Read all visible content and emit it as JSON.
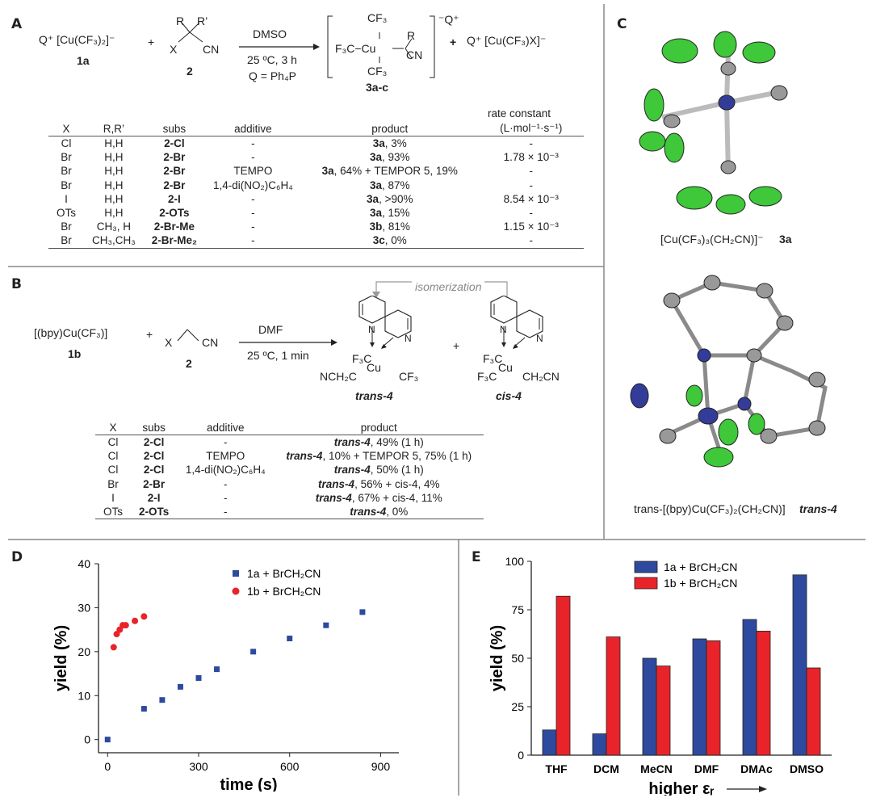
{
  "panels": {
    "a": "A",
    "b": "B",
    "c": "C",
    "d": "D",
    "e": "E"
  },
  "scheme_a": {
    "reagent1": "Q⁺ [Cu(CF₃)₂]⁻",
    "reagent1_id": "1a",
    "plus": "+",
    "r_label": "R",
    "rprime_label": "R’",
    "x_label": "X",
    "cn_label": "CN",
    "reagent2_id": "2",
    "arrow_top": "DMSO",
    "arrow_bottom1": "25 ºC, 3 h",
    "arrow_bottom2": "Q = Ph₄P",
    "charge": "⁻Q⁺",
    "product_id": "3a-c",
    "byproduct": "Q⁺ [Cu(CF₃)X]⁻",
    "cf3": "CF₃",
    "f3c": "F₃C",
    "cu": "Cu",
    "bond_cf3_left": "F₃C−Cu",
    "bond_r": "R"
  },
  "table_a": {
    "headers": {
      "x": "X",
      "r": "R,R’",
      "subs": "subs",
      "additive": "additive",
      "product": "product",
      "rate": "rate constant",
      "rate_unit": "(L·mol⁻¹·s⁻¹)"
    },
    "rows": [
      {
        "x": "Cl",
        "r": "H,H",
        "subs": "2-Cl",
        "additive": "-",
        "p_bold": "3a",
        "p_rest": ", 3%",
        "rate": "-"
      },
      {
        "x": "Br",
        "r": "H,H",
        "subs": "2-Br",
        "additive": "-",
        "p_bold": "3a",
        "p_rest": ", 93%",
        "rate": "1.78 × 10⁻³"
      },
      {
        "x": "Br",
        "r": "H,H",
        "subs": "2-Br",
        "additive": "TEMPO",
        "p_bold": "3a",
        "p_rest": ", 64% + TEMPOR 5, 19%",
        "rate": "-"
      },
      {
        "x": "Br",
        "r": "H,H",
        "subs": "2-Br",
        "additive": "1,4-di(NO₂)C₆H₄",
        "p_bold": "3a",
        "p_rest": ", 87%",
        "rate": "-"
      },
      {
        "x": "I",
        "r": "H,H",
        "subs": "2-I",
        "additive": "-",
        "p_bold": "3a",
        "p_rest": ", >90%",
        "rate": "8.54 × 10⁻³"
      },
      {
        "x": "OTs",
        "r": "H,H",
        "subs": "2-OTs",
        "additive": "-",
        "p_bold": "3a",
        "p_rest": ", 15%",
        "rate": "-"
      },
      {
        "x": "Br",
        "r": "CH₃, H",
        "subs": "2-Br-Me",
        "additive": "-",
        "p_bold": "3b",
        "p_rest": ", 81%",
        "rate": "1.15 × 10⁻³"
      },
      {
        "x": "Br",
        "r": "CH₃,CH₃",
        "subs": "2-Br-Me₂",
        "additive": "-",
        "p_bold": "3c",
        "p_rest": ", 0%",
        "rate": "-"
      }
    ]
  },
  "scheme_b": {
    "reagent1": "[(bpy)Cu(CF₃)]",
    "reagent1_id": "1b",
    "plus": "+",
    "x_label": "X",
    "cn_label": "CN",
    "reagent2_id": "2",
    "arrow_top": "DMF",
    "arrow_bottom": "25 ºC, 1 min",
    "isomerization": "isomerization",
    "n": "N",
    "cu": "Cu",
    "f3c": "F₃C",
    "cf3": "CF₃",
    "nch2c": "NCH₂C",
    "ch2cn": "CH₂CN",
    "trans_id": "trans-4",
    "cis_id": "cis-4"
  },
  "table_b": {
    "headers": {
      "x": "X",
      "subs": "subs",
      "additive": "additive",
      "product": "product"
    },
    "rows": [
      {
        "x": "Cl",
        "subs": "2-Cl",
        "additive": "-",
        "p_bold": "trans-4",
        "p_rest": ", 49% (1 h)"
      },
      {
        "x": "Cl",
        "subs": "2-Cl",
        "additive": "TEMPO",
        "p_bold": "trans-4",
        "p_rest": ", 10% + TEMPOR 5, 75% (1 h)"
      },
      {
        "x": "Cl",
        "subs": "2-Cl",
        "additive": "1,4-di(NO₂)C₆H₄",
        "p_bold": "trans-4",
        "p_rest": ", 50% (1 h)"
      },
      {
        "x": "Br",
        "subs": "2-Br",
        "additive": "-",
        "p_bold": "trans-4",
        "p_rest": ", 56% + cis-4, 4%"
      },
      {
        "x": "I",
        "subs": "2-I",
        "additive": "-",
        "p_bold": "trans-4",
        "p_rest": ", 67% + cis-4, 11%"
      },
      {
        "x": "OTs",
        "subs": "2-OTs",
        "additive": "-",
        "p_bold": "trans-4",
        "p_rest": ", 0%"
      }
    ]
  },
  "panel_c": {
    "caption1": "[Cu(CF₃)₃(CH₂CN)]⁻",
    "caption1_id": "3a",
    "caption2": "trans-[(bpy)Cu(CF₃)₂(CH₂CN)]",
    "caption2_id": "trans-4"
  },
  "colors": {
    "blue": "#2e4a9e",
    "red": "#e8242a",
    "bond": "#8a8a8a",
    "fluorine": "#3ec83a",
    "copper": "#343c9a"
  },
  "chart_data": [
    {
      "type": "scatter",
      "xlabel": "time (s)",
      "ylabel": "yield (%)",
      "xlim": [
        -30,
        960
      ],
      "ylim": [
        -3,
        40
      ],
      "xticks": [
        0,
        300,
        600,
        900
      ],
      "yticks": [
        0,
        10,
        20,
        30,
        40
      ],
      "legend_position": "top-right",
      "series": [
        {
          "name": "1a + BrCH₂CN",
          "color": "#2e4a9e",
          "marker": "square",
          "x": [
            0,
            120,
            180,
            240,
            300,
            360,
            480,
            600,
            720,
            840
          ],
          "y": [
            0,
            7,
            9,
            12,
            14,
            16,
            20,
            23,
            26,
            29
          ]
        },
        {
          "name": "1b + BrCH₂CN",
          "color": "#e8242a",
          "marker": "circle",
          "x": [
            20,
            30,
            40,
            50,
            60,
            90,
            120
          ],
          "y": [
            21,
            24,
            25,
            26,
            26,
            27,
            28
          ]
        }
      ]
    },
    {
      "type": "bar",
      "xlabel": "higher εᵣ",
      "ylabel": "yield (%)",
      "ylim": [
        0,
        100
      ],
      "yticks": [
        0,
        25,
        50,
        75,
        100
      ],
      "legend_position": "top-center",
      "categories": [
        "THF",
        "DCM",
        "MeCN",
        "DMF",
        "DMAc",
        "DMSO"
      ],
      "series": [
        {
          "name": "1a + BrCH₂CN",
          "color": "#2e4a9e",
          "values": [
            13,
            11,
            50,
            60,
            70,
            93
          ]
        },
        {
          "name": "1b + BrCH₂CN",
          "color": "#e8242a",
          "values": [
            82,
            61,
            46,
            59,
            64,
            45
          ]
        }
      ]
    }
  ]
}
